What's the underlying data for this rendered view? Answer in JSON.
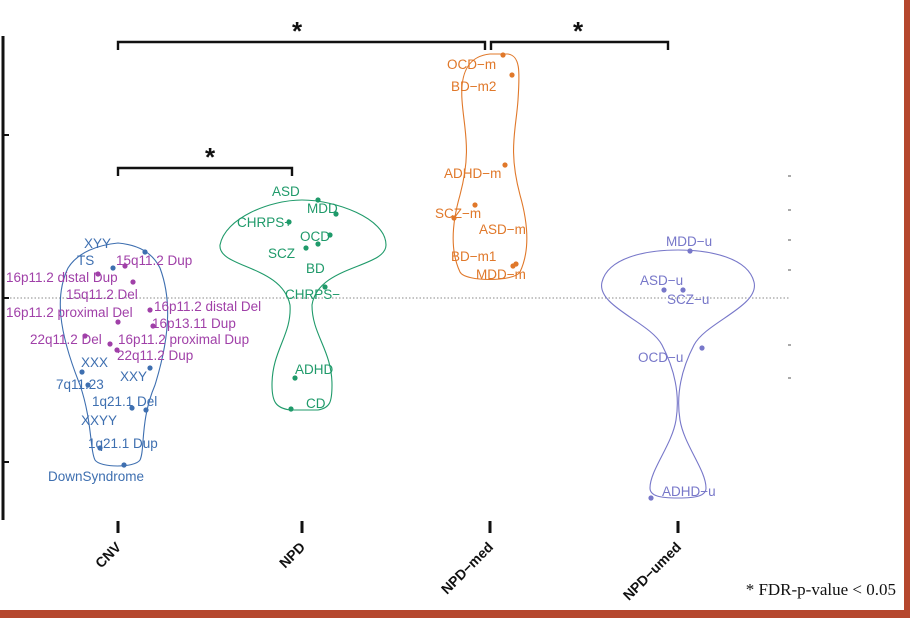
{
  "colors": {
    "cnv": "#3e6fb0",
    "cnv_alt": "#a040a8",
    "npd": "#1f9a6a",
    "npd_med": "#e0782a",
    "npd_umed": "#7777c9",
    "frame": "#b5472e",
    "bracket": "#111111"
  },
  "footnote": "* FDR-p-value < 0.05",
  "chart_data": {
    "type": "violin",
    "categories": [
      "CNV",
      "NPD",
      "NPD-med",
      "NPD-umed"
    ],
    "significance": [
      {
        "from": "CNV",
        "to": "NPD",
        "label": "*"
      },
      {
        "from": "CNV",
        "to": "NPD-med",
        "label": "*"
      },
      {
        "from": "NPD-med",
        "to": "NPD-umed",
        "label": "*"
      }
    ],
    "groups": [
      {
        "name": "CNV",
        "points": [
          {
            "label": "XYY",
            "color": "cnv"
          },
          {
            "label": "TS",
            "color": "cnv"
          },
          {
            "label": "15q11.2 Dup",
            "color": "cnv_alt"
          },
          {
            "label": "16p11.2 distal Dup",
            "color": "cnv_alt"
          },
          {
            "label": "15q11.2 Del",
            "color": "cnv_alt"
          },
          {
            "label": "16p11.2 distal Del",
            "color": "cnv_alt"
          },
          {
            "label": "16p11.2 proximal Del",
            "color": "cnv_alt"
          },
          {
            "label": "16p13.11 Dup",
            "color": "cnv_alt"
          },
          {
            "label": "22q11.2 Del",
            "color": "cnv_alt"
          },
          {
            "label": "16p11.2 proximal Dup",
            "color": "cnv_alt"
          },
          {
            "label": "22q11.2 Dup",
            "color": "cnv_alt"
          },
          {
            "label": "XXX",
            "color": "cnv"
          },
          {
            "label": "XXY",
            "color": "cnv"
          },
          {
            "label": "7q11.23",
            "color": "cnv"
          },
          {
            "label": "1q21.1 Del",
            "color": "cnv"
          },
          {
            "label": "XXYY",
            "color": "cnv"
          },
          {
            "label": "1q21.1 Dup",
            "color": "cnv"
          },
          {
            "label": "DownSyndrome",
            "color": "cnv"
          }
        ]
      },
      {
        "name": "NPD",
        "points": [
          {
            "label": "ASD",
            "color": "npd"
          },
          {
            "label": "MDD",
            "color": "npd"
          },
          {
            "label": "CHRPS+",
            "color": "npd"
          },
          {
            "label": "OCD",
            "color": "npd"
          },
          {
            "label": "SCZ",
            "color": "npd"
          },
          {
            "label": "BD",
            "color": "npd"
          },
          {
            "label": "CHRPS−",
            "color": "npd"
          },
          {
            "label": "ADHD",
            "color": "npd"
          },
          {
            "label": "CD",
            "color": "npd"
          }
        ]
      },
      {
        "name": "NPD-med",
        "points": [
          {
            "label": "OCD−m",
            "color": "npd_med"
          },
          {
            "label": "BD−m2",
            "color": "npd_med"
          },
          {
            "label": "ADHD−m",
            "color": "npd_med"
          },
          {
            "label": "SCZ−m",
            "color": "npd_med"
          },
          {
            "label": "ASD−m",
            "color": "npd_med"
          },
          {
            "label": "BD−m1",
            "color": "npd_med"
          },
          {
            "label": "MDD−m",
            "color": "npd_med"
          }
        ]
      },
      {
        "name": "NPD-umed",
        "points": [
          {
            "label": "MDD−u",
            "color": "npd_umed"
          },
          {
            "label": "ASD−u",
            "color": "npd_umed"
          },
          {
            "label": "SCZ−u",
            "color": "npd_umed"
          },
          {
            "label": "OCD−u",
            "color": "npd_umed"
          },
          {
            "label": "ADHD−u",
            "color": "npd_umed"
          }
        ]
      }
    ]
  }
}
